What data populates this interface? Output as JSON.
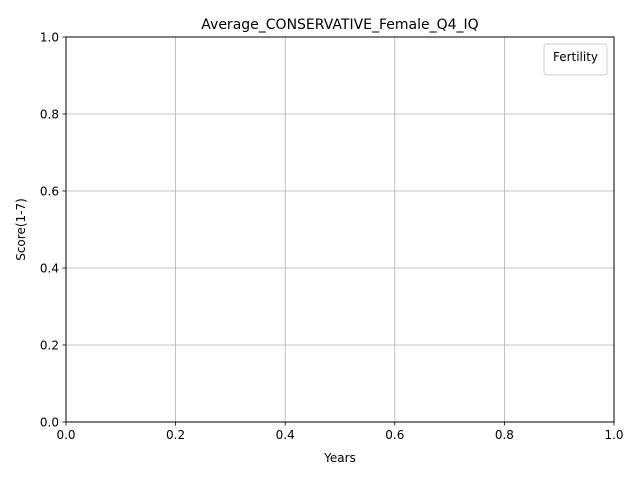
{
  "chart_data": {
    "type": "line",
    "title": "Average_CONSERVATIVE_Female_Q4_IQ",
    "xlabel": "Years",
    "ylabel": "Score(1-7)",
    "xlim": [
      0.0,
      1.0
    ],
    "ylim": [
      0.0,
      1.0
    ],
    "xticks": [
      "0.0",
      "0.2",
      "0.4",
      "0.6",
      "0.8",
      "1.0"
    ],
    "yticks": [
      "0.0",
      "0.2",
      "0.4",
      "0.6",
      "0.8",
      "1.0"
    ],
    "grid": true,
    "legend": {
      "title": "Fertility",
      "placement": "top-right",
      "entries": []
    },
    "series": []
  },
  "colors": {
    "grid": "#b0b0b0",
    "axis": "#000000",
    "background": "#ffffff"
  }
}
